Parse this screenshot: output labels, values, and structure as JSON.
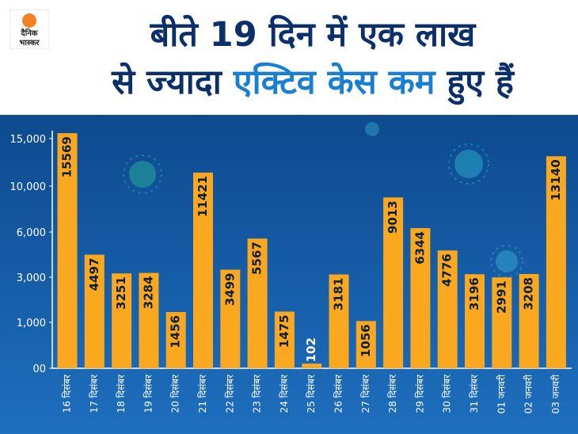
{
  "header": {
    "title_line1": "बीते 19 दिन में एक लाख",
    "title_line2_a": "से ज्यादा",
    "title_line2_b": "एक्टिव केस कम",
    "title_line2_c": "हुए हैं",
    "logo_text_1": "दैनिक",
    "logo_text_2": "भास्कर"
  },
  "colors": {
    "bar": "#f9a81f",
    "title": "#0a2f6b",
    "highlight": "#1a7fd1",
    "background_top": "#0d4a8f",
    "background_bottom": "#1e6fbe",
    "logo_sun": "#f58220"
  },
  "chart_data": {
    "type": "bar",
    "categories": [
      "16 दिसंबर",
      "17 दिसंबर",
      "18 दिसंबर",
      "19 दिसंबर",
      "20 दिसंबर",
      "21 दिसंबर",
      "22 दिसंबर",
      "23 दिसंबर",
      "24 दिसंबर",
      "25 दिसंबर",
      "26 दिसंबर",
      "27 दिसंबर",
      "28 दिसंबर",
      "29 दिसंबर",
      "30 दिसंबर",
      "31 दिसंबर",
      "01 जनवरी",
      "02 जनवरी",
      "03 जनवरी"
    ],
    "values": [
      15569,
      4497,
      3251,
      3284,
      1456,
      11421,
      3499,
      5567,
      1475,
      102,
      3181,
      1056,
      9013,
      6344,
      4776,
      3196,
      2991,
      3208,
      13140
    ],
    "ytick_values": [
      0,
      1000,
      3000,
      6000,
      10000,
      15000
    ],
    "ytick_labels": [
      "00",
      "1,000",
      "3,000",
      "6,000",
      "10,000",
      "15,000"
    ],
    "title": "",
    "xlabel": "",
    "ylabel": "",
    "scale": "nonlinear (piecewise between labeled ticks)",
    "grid": false
  }
}
